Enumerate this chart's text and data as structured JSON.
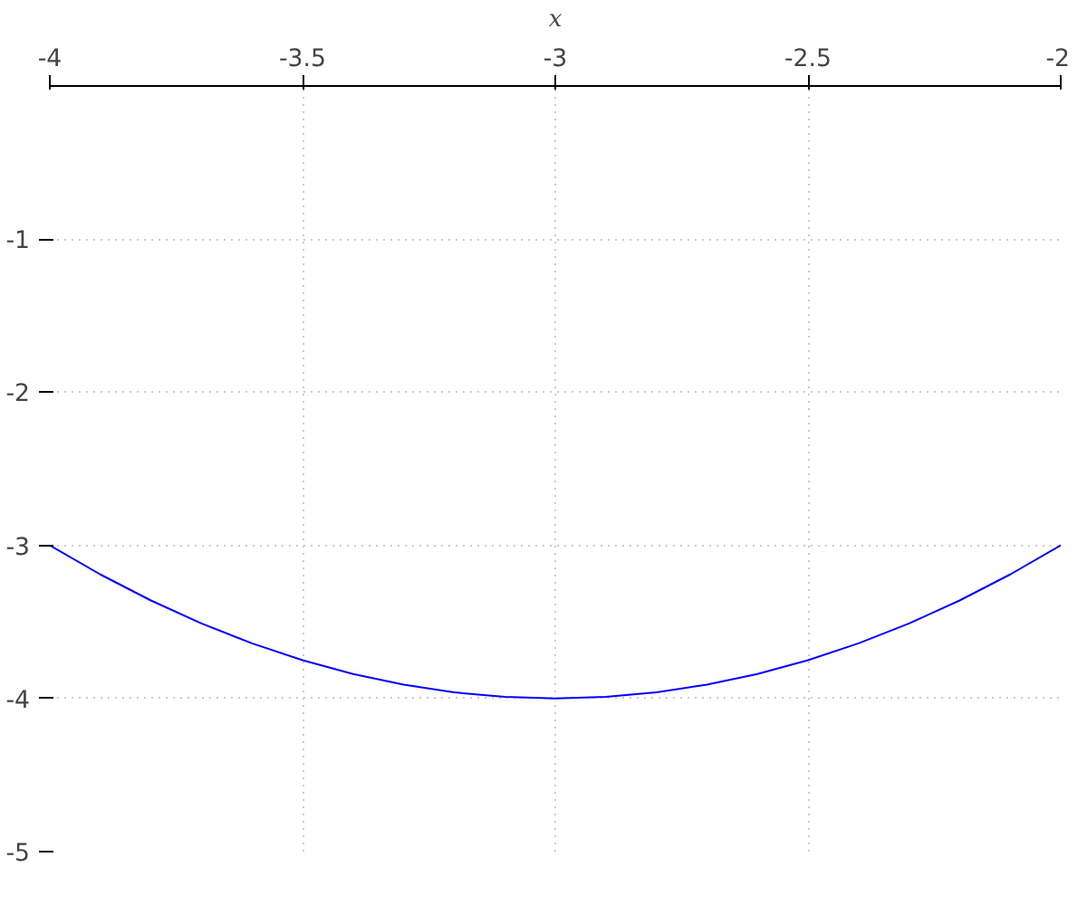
{
  "chart_data": {
    "type": "line",
    "xlabel": "x",
    "x": [
      -4,
      -3.9,
      -3.8,
      -3.7,
      -3.6,
      -3.5,
      -3.4,
      -3.3,
      -3.2,
      -3.1,
      -3,
      -2.9,
      -2.8,
      -2.7,
      -2.6,
      -2.5,
      -2.4,
      -2.3,
      -2.2,
      -2.1,
      -2
    ],
    "series": [
      {
        "color": "#0000ff",
        "values": [
          -3,
          -3.19,
          -3.36,
          -3.51,
          -3.64,
          -3.75,
          -3.84,
          -3.91,
          -3.96,
          -3.99,
          -4,
          -3.99,
          -3.96,
          -3.91,
          -3.84,
          -3.75,
          -3.64,
          -3.51,
          -3.36,
          -3.19,
          -3
        ]
      }
    ],
    "xlim": [
      -4,
      -2
    ],
    "ylim": [
      -5,
      0
    ],
    "xticks": [
      -4,
      -3.5,
      -3,
      -2.5,
      -2
    ],
    "yticks": [
      -5,
      -4,
      -3,
      -2,
      -1
    ],
    "grid": true,
    "line_style": "solid",
    "marker": "none"
  }
}
